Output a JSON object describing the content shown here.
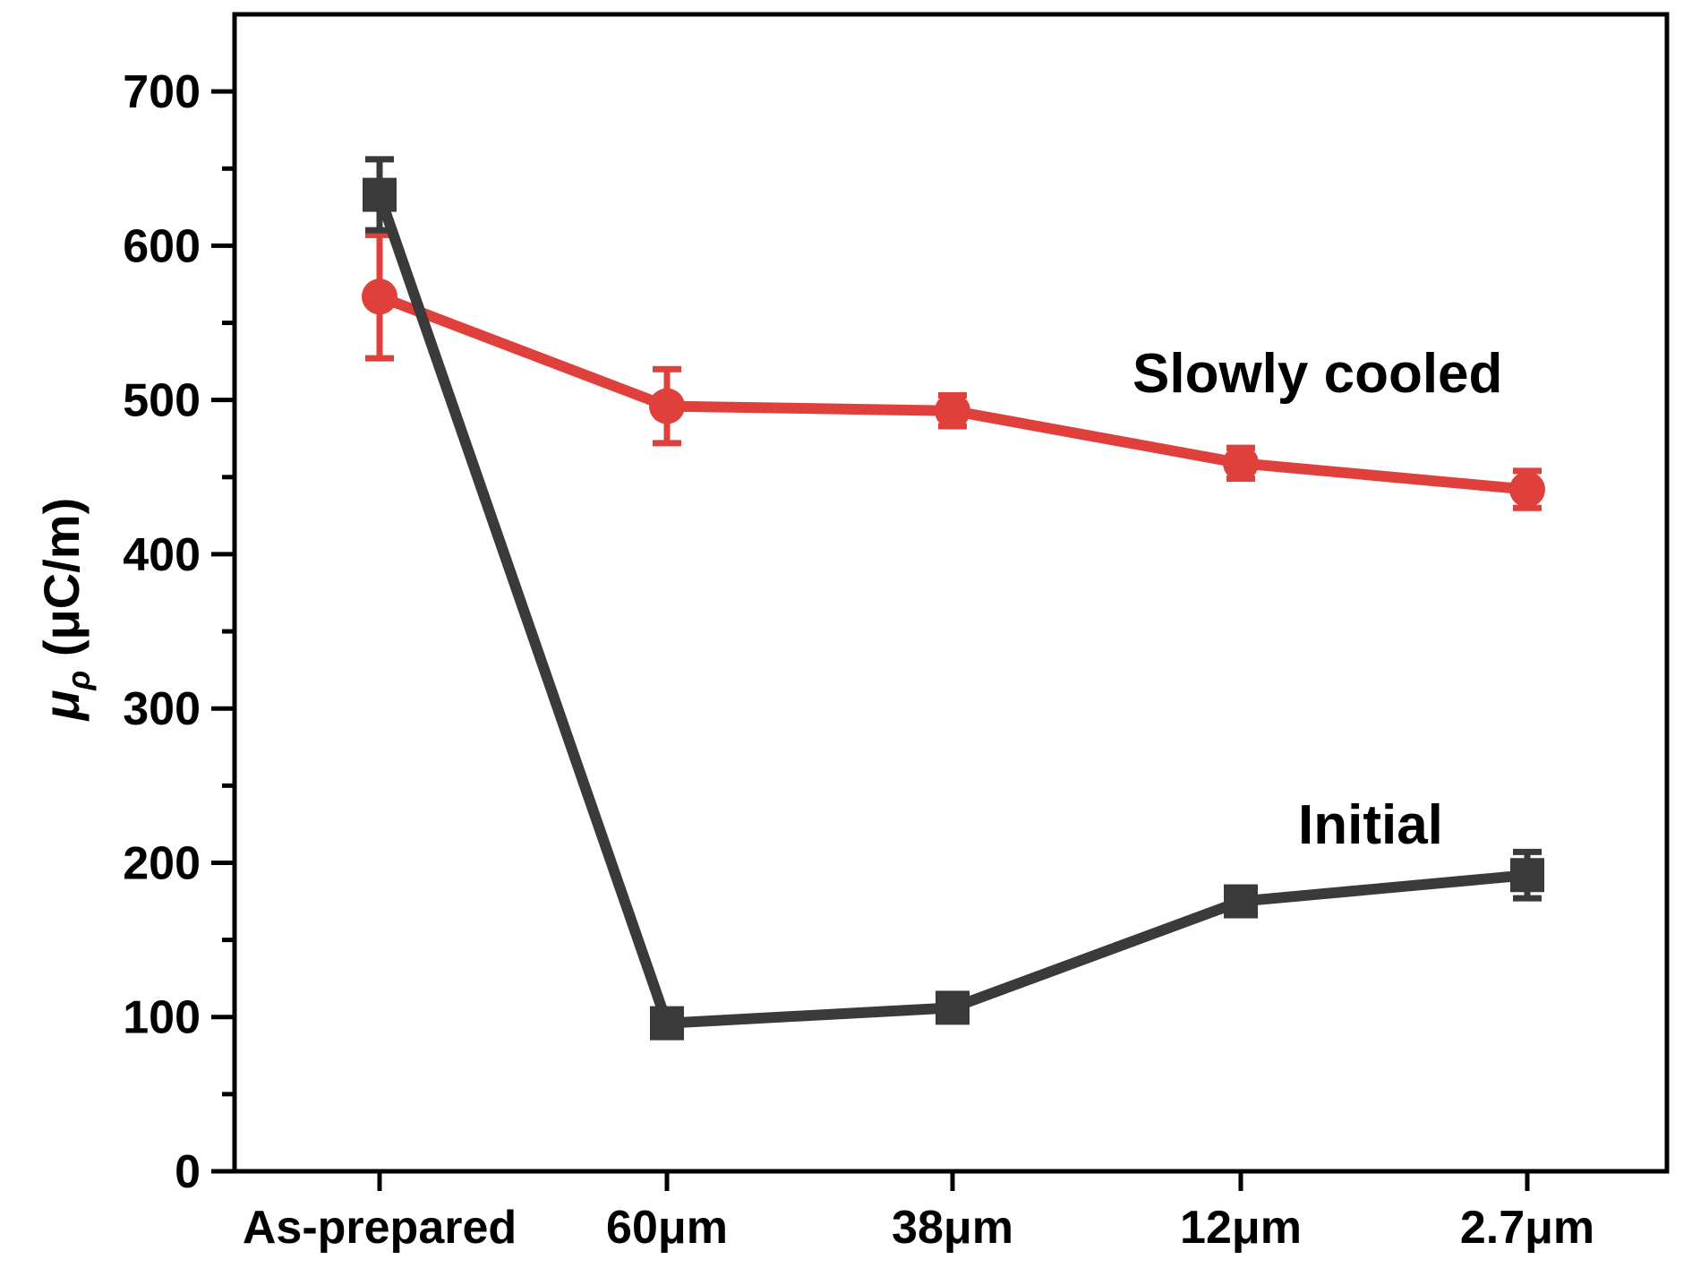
{
  "chart_data": {
    "type": "line",
    "categories": [
      "As-prepared",
      "60μm",
      "38μm",
      "12μm",
      "2.7μm"
    ],
    "ylabel": {
      "main": "μ",
      "sub": "ρ",
      "unit": " (μC/m)"
    },
    "ylim": [
      0,
      750
    ],
    "yticks": [
      "0",
      "100",
      "200",
      "300",
      "400",
      "500",
      "600",
      "700"
    ],
    "grid": false,
    "series": [
      {
        "name": "Slowly cooled",
        "color": "#e0403c",
        "marker": "circle",
        "values": [
          567,
          496,
          493,
          459,
          442
        ],
        "errors": [
          40,
          24,
          10,
          10,
          12
        ]
      },
      {
        "name": "Initial",
        "color": "#3a3a3a",
        "marker": "square",
        "values": [
          633,
          96,
          106,
          175,
          192
        ],
        "errors": [
          23,
          8,
          8,
          8,
          15
        ]
      }
    ],
    "annotations": [
      "Slowly cooled",
      "Initial"
    ]
  }
}
